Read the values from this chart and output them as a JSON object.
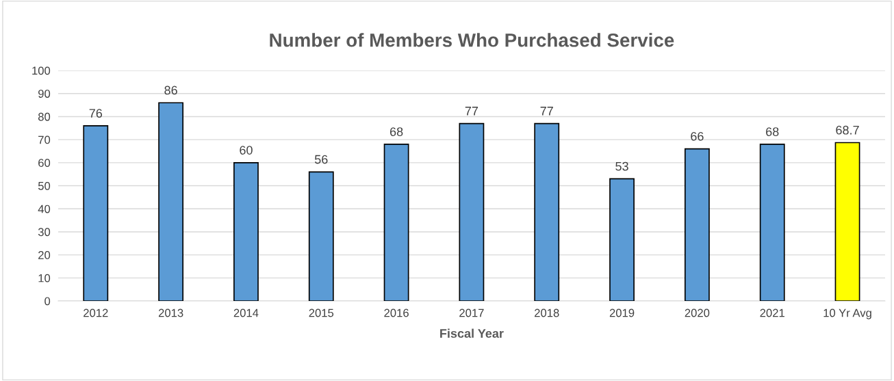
{
  "chart_data": {
    "type": "bar",
    "title": "Number of Members Who Purchased Service",
    "xlabel": "Fiscal Year",
    "categories": [
      "2012",
      "2013",
      "2014",
      "2015",
      "2016",
      "2017",
      "2018",
      "2019",
      "2020",
      "2021",
      "10 Yr Avg"
    ],
    "values": [
      76,
      86,
      60,
      56,
      68,
      77,
      77,
      53,
      66,
      68,
      68.7
    ],
    "colors": [
      "#5b9bd5",
      "#5b9bd5",
      "#5b9bd5",
      "#5b9bd5",
      "#5b9bd5",
      "#5b9bd5",
      "#5b9bd5",
      "#5b9bd5",
      "#5b9bd5",
      "#5b9bd5",
      "#ffff00"
    ],
    "ylim": [
      0,
      100
    ],
    "yticks": [
      0,
      10,
      20,
      30,
      40,
      50,
      60,
      70,
      80,
      90,
      100
    ],
    "grid": "y",
    "data_labels": true,
    "legend": false
  }
}
